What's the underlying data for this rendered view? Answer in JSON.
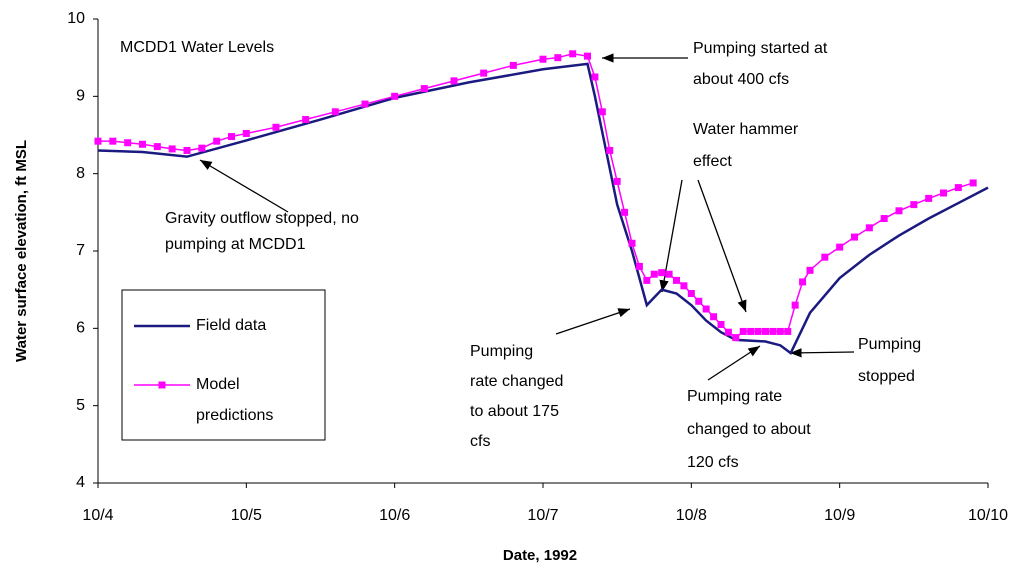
{
  "chart_data": {
    "type": "line",
    "title": "MCDD1 Water Levels",
    "xlabel": "Date, 1992",
    "ylabel": "Water surface elevation, ft MSL",
    "xlim": [
      4,
      10
    ],
    "xticks": [
      {
        "value": 4,
        "label": "10/4"
      },
      {
        "value": 5,
        "label": "10/5"
      },
      {
        "value": 6,
        "label": "10/6"
      },
      {
        "value": 7,
        "label": "10/7"
      },
      {
        "value": 8,
        "label": "10/8"
      },
      {
        "value": 9,
        "label": "10/9"
      },
      {
        "value": 10,
        "label": "10/10"
      }
    ],
    "ylim": [
      4,
      10
    ],
    "yticks": [
      4,
      5,
      6,
      7,
      8,
      9,
      10
    ],
    "grid": false,
    "legend": "lower left",
    "series": [
      {
        "name": "Field data",
        "color": "#1a1a80",
        "markers": false,
        "x": [
          4.0,
          4.3,
          4.6,
          5.0,
          5.5,
          6.0,
          6.5,
          7.0,
          7.3,
          7.35,
          7.5,
          7.6,
          7.7,
          7.8,
          7.9,
          8.0,
          8.1,
          8.2,
          8.3,
          8.5,
          8.6,
          8.67,
          8.8,
          9.0,
          9.2,
          9.4,
          9.6,
          9.8,
          10.0
        ],
        "values": [
          8.3,
          8.28,
          8.22,
          8.43,
          8.7,
          8.98,
          9.18,
          9.35,
          9.42,
          9.0,
          7.6,
          7.0,
          6.3,
          6.5,
          6.45,
          6.3,
          6.1,
          5.95,
          5.85,
          5.83,
          5.78,
          5.68,
          6.2,
          6.65,
          6.95,
          7.2,
          7.42,
          7.62,
          7.82
        ]
      },
      {
        "name": "Model predictions",
        "color": "#ff00ff",
        "markers": true,
        "x": [
          4.0,
          4.1,
          4.2,
          4.3,
          4.4,
          4.5,
          4.6,
          4.7,
          4.8,
          4.9,
          5.0,
          5.2,
          5.4,
          5.6,
          5.8,
          6.0,
          6.2,
          6.4,
          6.6,
          6.8,
          7.0,
          7.1,
          7.2,
          7.3,
          7.35,
          7.4,
          7.45,
          7.5,
          7.55,
          7.6,
          7.65,
          7.7,
          7.75,
          7.8,
          7.85,
          7.9,
          7.95,
          8.0,
          8.05,
          8.1,
          8.15,
          8.2,
          8.25,
          8.3,
          8.35,
          8.4,
          8.45,
          8.5,
          8.55,
          8.6,
          8.65,
          8.7,
          8.75,
          8.8,
          8.9,
          9.0,
          9.1,
          9.2,
          9.3,
          9.4,
          9.5,
          9.6,
          9.7,
          9.8,
          9.9
        ],
        "values": [
          8.42,
          8.42,
          8.4,
          8.38,
          8.35,
          8.32,
          8.3,
          8.33,
          8.42,
          8.48,
          8.52,
          8.6,
          8.7,
          8.8,
          8.9,
          9.0,
          9.1,
          9.2,
          9.3,
          9.4,
          9.48,
          9.5,
          9.55,
          9.52,
          9.25,
          8.8,
          8.3,
          7.9,
          7.5,
          7.1,
          6.8,
          6.62,
          6.7,
          6.72,
          6.7,
          6.62,
          6.55,
          6.45,
          6.35,
          6.25,
          6.15,
          6.05,
          5.95,
          5.88,
          5.96,
          5.96,
          5.96,
          5.96,
          5.96,
          5.96,
          5.96,
          6.3,
          6.6,
          6.75,
          6.92,
          7.05,
          7.18,
          7.3,
          7.42,
          7.52,
          7.6,
          7.68,
          7.75,
          7.82,
          7.88
        ]
      }
    ],
    "annotations": [
      {
        "lines": [
          "Gravity outflow stopped, no",
          "pumping at MCDD1"
        ]
      },
      {
        "lines": [
          "Pumping started at",
          "about 400 cfs"
        ]
      },
      {
        "lines": [
          "Water hammer",
          "effect"
        ]
      },
      {
        "lines": [
          "Pumping",
          "rate changed",
          "to about 175",
          "cfs"
        ]
      },
      {
        "lines": [
          "Pumping rate",
          "changed to about",
          "120 cfs"
        ]
      },
      {
        "lines": [
          "Pumping",
          "stopped"
        ]
      }
    ]
  }
}
